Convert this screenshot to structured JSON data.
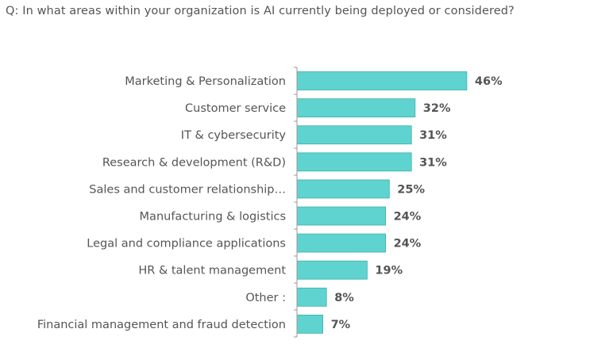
{
  "question": "Q: In what areas within your organization is AI currently being deployed or considered?",
  "colors": {
    "bar_fill": "#5ed3cf",
    "bar_stroke": "#3fb0ab",
    "axis": "#999999",
    "text": "#555555"
  },
  "chart_data": {
    "type": "bar",
    "orientation": "horizontal",
    "title": "",
    "xlabel": "",
    "ylabel": "",
    "xlim": [
      0,
      100
    ],
    "grid": false,
    "categories": [
      "Marketing & Personalization",
      "Customer service",
      "IT & cybersecurity",
      "Research & development (R&D)",
      "Sales and customer relationship…",
      "Manufacturing & logistics",
      "Legal and compliance applications",
      "HR & talent management",
      "Other :",
      "Financial management and fraud detection"
    ],
    "values": [
      46,
      32,
      31,
      31,
      25,
      24,
      24,
      19,
      8,
      7
    ],
    "value_labels": [
      "46%",
      "32%",
      "31%",
      "31%",
      "25%",
      "24%",
      "24%",
      "19%",
      "8%",
      "7%"
    ]
  }
}
